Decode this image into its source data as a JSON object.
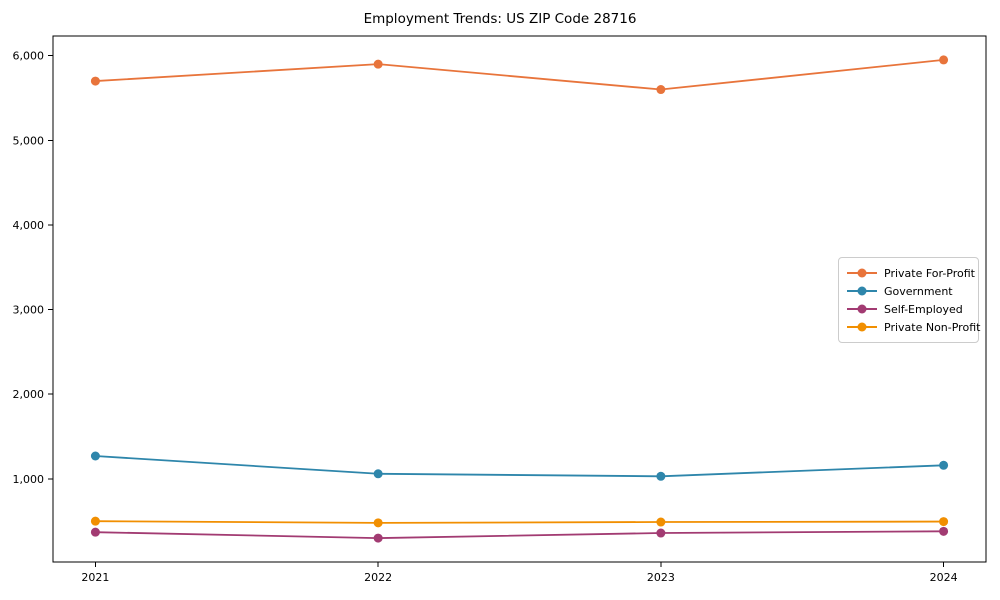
{
  "title": "Employment Trends: US ZIP Code 28716",
  "chart_data": {
    "type": "line",
    "x": [
      2021,
      2022,
      2023,
      2024
    ],
    "x_tick_labels": [
      "2021",
      "2022",
      "2023",
      "2024"
    ],
    "series": [
      {
        "name": "Private For-Profit",
        "color": "#E8743B",
        "values": [
          5700,
          5900,
          5600,
          5950
        ]
      },
      {
        "name": "Government",
        "color": "#2E86AB",
        "values": [
          1270,
          1060,
          1030,
          1160
        ]
      },
      {
        "name": "Self-Employed",
        "color": "#A23B72",
        "values": [
          370,
          300,
          360,
          380
        ]
      },
      {
        "name": "Private Non-Profit",
        "color": "#F18F01",
        "values": [
          500,
          480,
          490,
          495
        ]
      }
    ],
    "y_ticks": [
      1000,
      2000,
      3000,
      4000,
      5000,
      6000
    ],
    "y_tick_labels": [
      "1,000",
      "2,000",
      "3,000",
      "4,000",
      "5,000",
      "6,000"
    ],
    "xlim": [
      2020.85,
      2024.15
    ],
    "ylim": [
      17.5,
      6232.5
    ],
    "grid": false,
    "legend_position": "center right",
    "marker": "circle",
    "axis_color": "#000000",
    "background_color": "#ffffff"
  }
}
